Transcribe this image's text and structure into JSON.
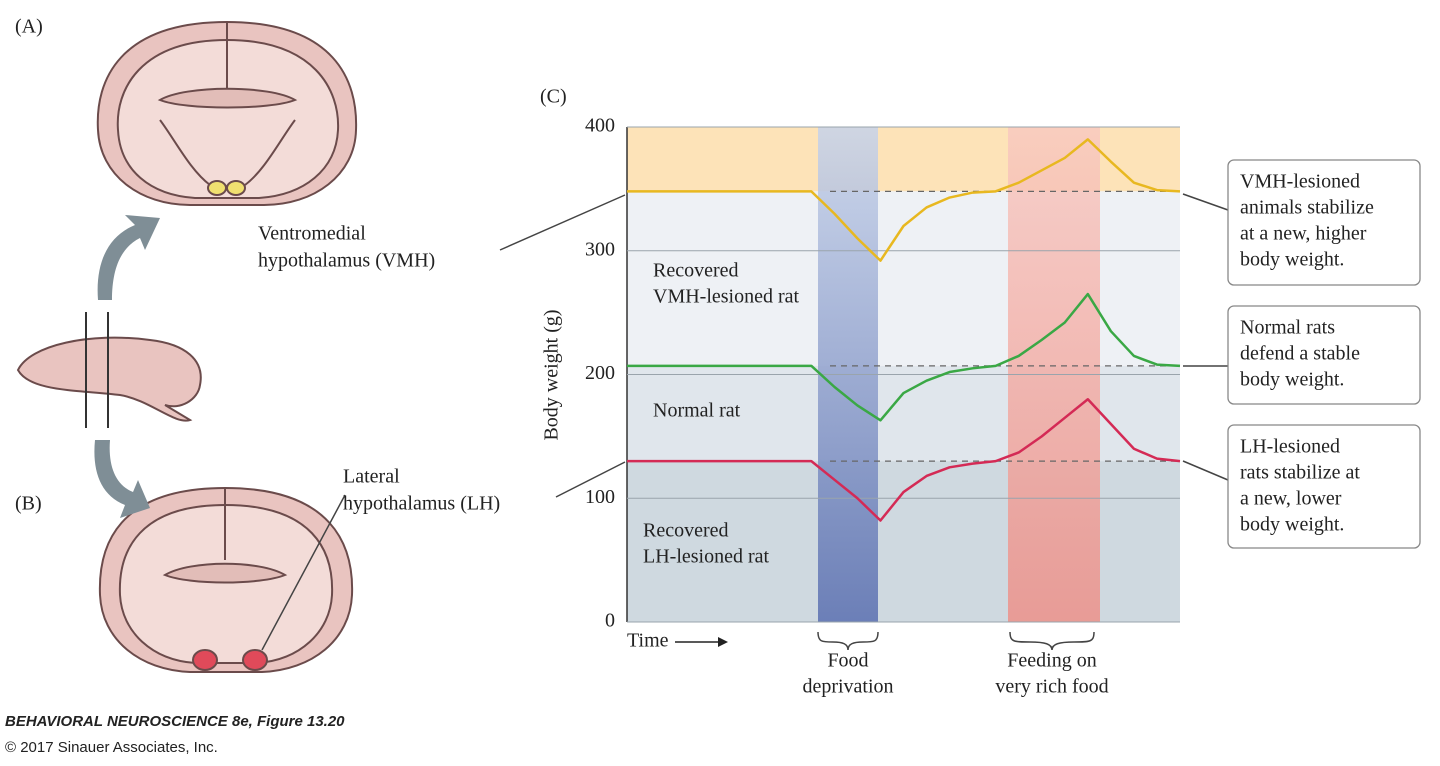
{
  "panels": {
    "a": "(A)",
    "b": "(B)",
    "c": "(C)"
  },
  "labels": {
    "vmh": [
      "Ventromedial",
      "hypothalamus (VMH)"
    ],
    "lh": [
      "Lateral",
      "hypothalamus (LH)"
    ]
  },
  "chart_data": {
    "type": "line",
    "ylabel": "Body weight (g)",
    "xlabel": "Time",
    "ylim": [
      0,
      400
    ],
    "yticks": [
      0,
      100,
      200,
      300,
      400
    ],
    "series": [
      {
        "name": [
          "Recovered",
          "VMH-lesioned rat"
        ],
        "color": "#e8b820",
        "setpoint": 348,
        "values": [
          348,
          348,
          348,
          348,
          348,
          348,
          348,
          348,
          348,
          330,
          310,
          292,
          320,
          335,
          343,
          347,
          348,
          355,
          365,
          375,
          390,
          372,
          355,
          349,
          348
        ]
      },
      {
        "name": [
          "Normal rat"
        ],
        "color": "#3aa845",
        "setpoint": 207,
        "values": [
          207,
          207,
          207,
          207,
          207,
          207,
          207,
          207,
          207,
          190,
          175,
          163,
          185,
          195,
          202,
          205,
          207,
          215,
          228,
          242,
          265,
          235,
          215,
          208,
          207
        ]
      },
      {
        "name": [
          "Recovered",
          "LH-lesioned rat"
        ],
        "color": "#d42a55",
        "setpoint": 130,
        "values": [
          130,
          130,
          130,
          130,
          130,
          130,
          130,
          130,
          130,
          115,
          100,
          82,
          105,
          118,
          125,
          128,
          130,
          137,
          150,
          165,
          180,
          160,
          140,
          132,
          130
        ]
      }
    ],
    "periods": [
      [
        "Food",
        "deprivation"
      ],
      [
        "Feeding on",
        "very rich food"
      ]
    ],
    "callouts": [
      [
        "VMH-lesioned",
        "animals stabilize",
        "at a new, higher",
        "body weight."
      ],
      [
        "Normal rats",
        "defend a stable",
        "body weight."
      ],
      [
        "LH-lesioned",
        "rats stabilize at",
        "a new, lower",
        "body weight."
      ]
    ]
  },
  "credit": [
    "BEHAVIORAL NEUROSCIENCE 8e, Figure 13.20",
    "© 2017 Sinauer Associates, Inc."
  ]
}
